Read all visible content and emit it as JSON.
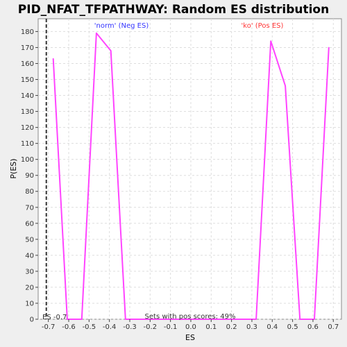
{
  "colors": {
    "line": "#ff44ff",
    "neg_label": "#3333ff",
    "pos_label": "#ff3333",
    "es_line": "#333333",
    "grid": "#dddddd",
    "plot_bg": "#ffffff",
    "page_bg": "#efefef"
  },
  "chart_data": {
    "type": "line",
    "title": "PID_NFAT_TFPATHWAY: Random ES distribution",
    "xlabel": "ES",
    "ylabel": "P(ES)",
    "xlim": [
      -0.75,
      0.74
    ],
    "ylim": [
      0,
      188
    ],
    "xticks": [
      -0.7,
      -0.6,
      -0.5,
      -0.4,
      -0.3,
      -0.2,
      -0.1,
      0.0,
      0.1,
      0.2,
      0.3,
      0.4,
      0.5,
      0.6,
      0.7
    ],
    "yticks": [
      0,
      10,
      20,
      30,
      40,
      50,
      60,
      70,
      80,
      90,
      100,
      110,
      120,
      130,
      140,
      150,
      160,
      170,
      180
    ],
    "grid": true,
    "series": [
      {
        "x": [
          -0.676,
          -0.607,
          -0.536,
          -0.464,
          -0.393,
          -0.321,
          0.321,
          0.393,
          0.464,
          0.536,
          0.607,
          0.678
        ],
        "values": [
          163,
          0,
          0,
          179,
          168,
          0,
          0,
          174,
          146,
          0,
          0,
          170
        ]
      }
    ],
    "observed_es": -0.71,
    "annotations": {
      "neg_label": "'norm' (Neg ES)",
      "pos_label": "'ko' (Pos ES)",
      "es_label": "ES -0.7",
      "pos_scores": "Sets with pos scores: 49%"
    }
  }
}
